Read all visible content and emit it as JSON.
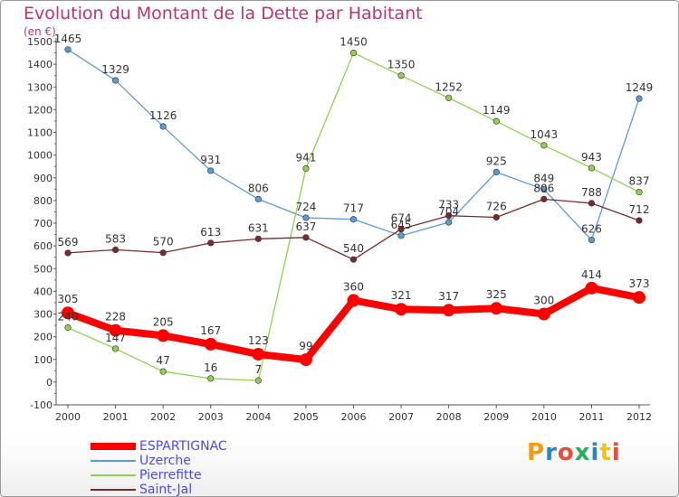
{
  "header": {
    "title": "Evolution du Montant de la Dette par Habitant",
    "subtitle": "(en €)"
  },
  "logo": {
    "letters": [
      "P",
      "r",
      "o",
      "x",
      "i",
      "t",
      "i"
    ],
    "colors": [
      "#f39c12",
      "#2e86c1",
      "#e74c3c",
      "#27ae60",
      "#2e86c1",
      "#f1c40f",
      "#e74c3c"
    ]
  },
  "chart_data": {
    "type": "line",
    "title": "Evolution du Montant de la Dette par Habitant",
    "subtitle": "(en €)",
    "xlabel": "",
    "ylabel": "",
    "x": [
      "2000",
      "2001",
      "2002",
      "2003",
      "2004",
      "2005",
      "2006",
      "2007",
      "2008",
      "2009",
      "2010",
      "2011",
      "2012"
    ],
    "ylim": [
      -100,
      1500
    ],
    "yticks": [
      -100,
      0,
      100,
      200,
      300,
      400,
      500,
      600,
      700,
      800,
      900,
      1000,
      1100,
      1200,
      1300,
      1400,
      1500
    ],
    "grid": false,
    "legend_position": "bottom-left",
    "series": [
      {
        "name": "Uzerche",
        "color": "#5b9bd5",
        "values": [
          1465,
          1329,
          1126,
          931,
          806,
          724,
          717,
          645,
          704,
          925,
          849,
          626,
          1249
        ]
      },
      {
        "name": "Pierrefitte",
        "color": "#8fd14f",
        "values": [
          240,
          147,
          47,
          16,
          7,
          941,
          1450,
          1350,
          1252,
          1149,
          1043,
          943,
          837
        ]
      },
      {
        "name": "Saint-Jal",
        "color": "#7a2a2a",
        "values": [
          569,
          583,
          570,
          613,
          631,
          637,
          540,
          674,
          733,
          726,
          806,
          788,
          712
        ]
      },
      {
        "name": "ESPARTIGNAC",
        "color": "#ff0000",
        "values": [
          305,
          228,
          205,
          167,
          123,
          99,
          360,
          321,
          317,
          325,
          300,
          414,
          373
        ]
      }
    ],
    "legend": [
      {
        "name": "ESPARTIGNAC",
        "color": "#ff0000",
        "width": 8
      },
      {
        "name": "Uzerche",
        "color": "#5b9bd5",
        "width": 1.5
      },
      {
        "name": "Pierrefitte",
        "color": "#8fd14f",
        "width": 1.5
      },
      {
        "name": "Saint-Jal",
        "color": "#7a2a2a",
        "width": 1.5
      }
    ]
  }
}
